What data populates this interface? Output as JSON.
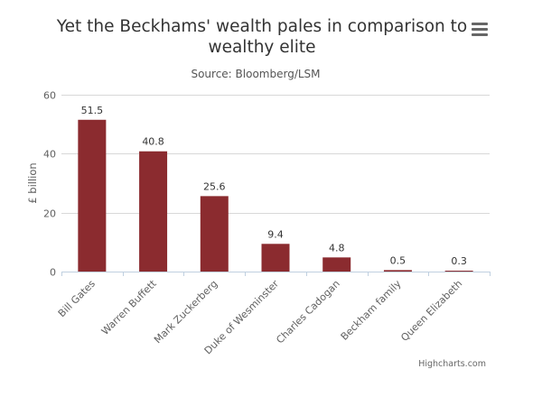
{
  "menu_icon": "hamburger-menu-icon",
  "credits": "Highcharts.com",
  "colors": {
    "bar": "#8b2b2f",
    "grid": "#d8d8d8",
    "axis": "#c0d0e0"
  },
  "chart_data": {
    "type": "bar",
    "title_line1": "Yet the Beckhams' wealth pales in comparison to",
    "title_line2": "wealthy elite",
    "subtitle": "Source: Bloomberg/LSM",
    "ylabel": "£ billion",
    "xlabel": "",
    "ylim": [
      0,
      60
    ],
    "yticks": [
      "0",
      "20",
      "40",
      "60"
    ],
    "categories": [
      "Bill Gates",
      "Warren Buffett",
      "Mark Zuckerberg",
      "Duke of Wesminster",
      "Charles Cadogan",
      "Beckham family",
      "Queen Elizabeth"
    ],
    "values": [
      51.5,
      40.8,
      25.6,
      9.4,
      4.8,
      0.5,
      0.3
    ],
    "data_labels": [
      "51.5",
      "40.8",
      "25.6",
      "9.4",
      "4.8",
      "0.5",
      "0.3"
    ],
    "grid": true,
    "legend": "none"
  }
}
